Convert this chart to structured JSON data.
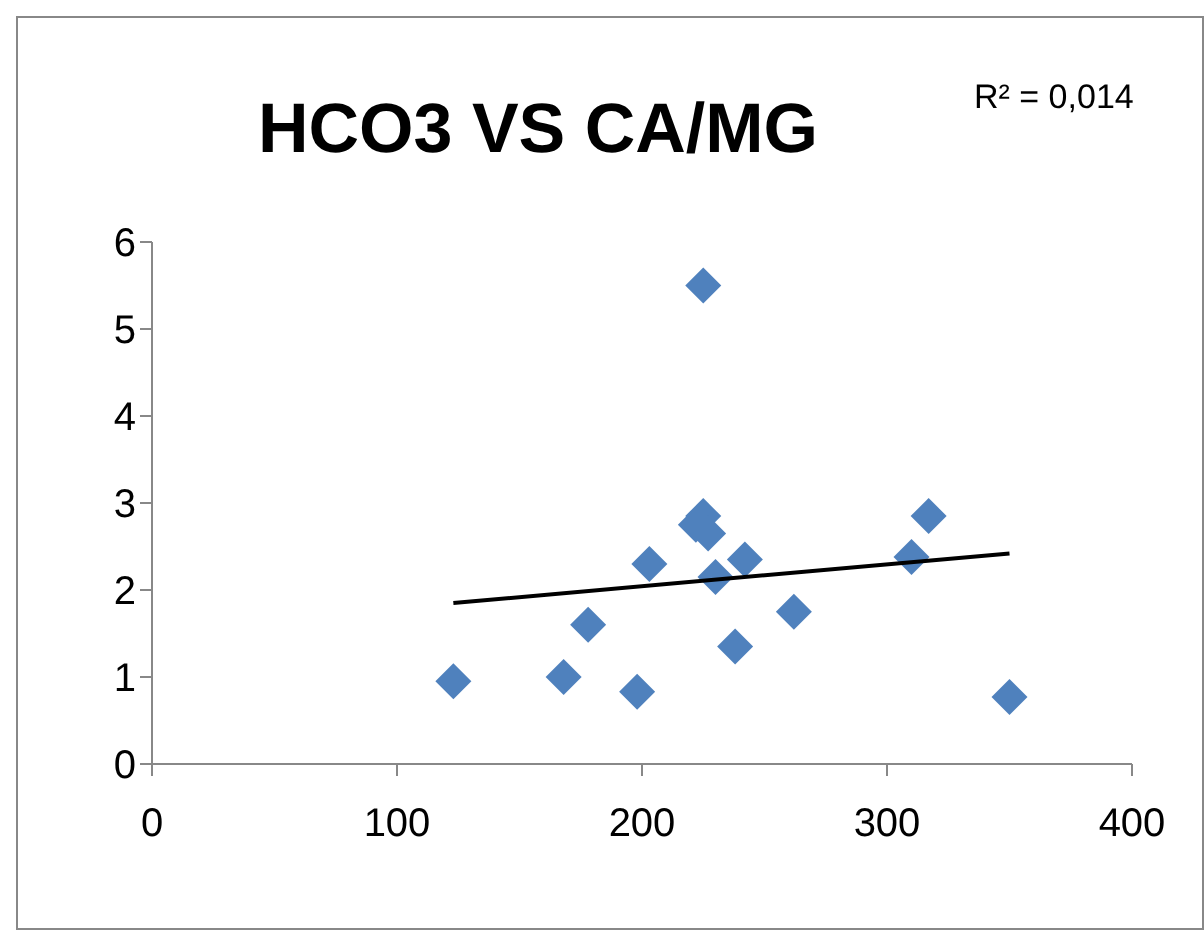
{
  "chart_data": {
    "type": "scatter",
    "title": "HCO3 VS CA/MG",
    "annotations": [
      "R² = 0,014"
    ],
    "xlim": [
      0,
      400
    ],
    "xticks": [
      0,
      100,
      200,
      300,
      400
    ],
    "ylim": [
      0,
      6
    ],
    "yticks": [
      0,
      1,
      2,
      3,
      4,
      5,
      6
    ],
    "grid": false,
    "marker": "diamond",
    "series": [
      {
        "color": "#4f81bd",
        "x": [
          123,
          168,
          178,
          198,
          203,
          222,
          225,
          225,
          227,
          230,
          238,
          242,
          262,
          310,
          317,
          350
        ],
        "values": [
          0.95,
          1.0,
          1.6,
          0.83,
          2.3,
          2.75,
          2.85,
          5.5,
          2.65,
          2.15,
          1.35,
          2.35,
          1.75,
          2.38,
          2.85,
          0.77
        ]
      },
      {
        "type": "line",
        "color": "#000000",
        "marker": "none",
        "x": [
          123,
          350
        ],
        "values": [
          1.85,
          2.42
        ]
      }
    ]
  }
}
